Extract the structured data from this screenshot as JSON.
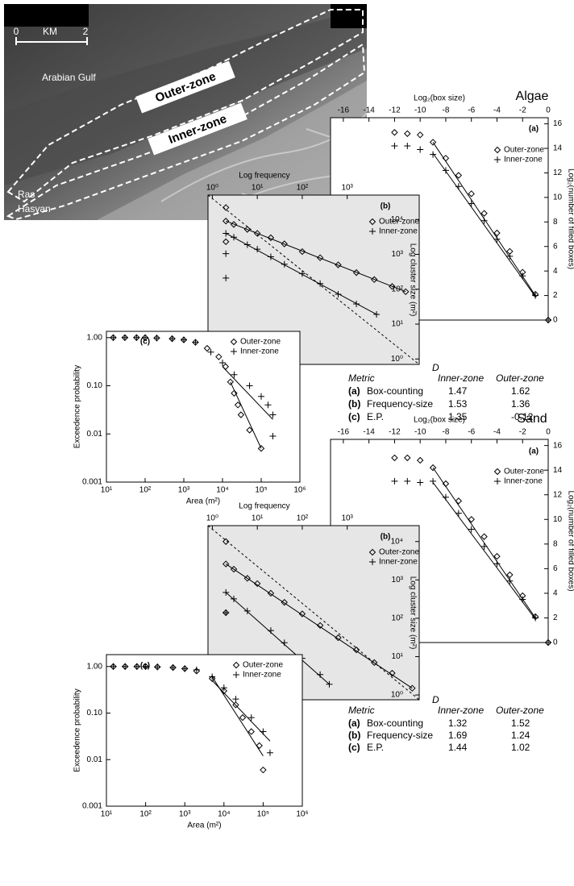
{
  "map": {
    "scale_bar": [
      "0",
      "KM",
      "2"
    ],
    "sea_label": "Arabian Gulf",
    "zone_labels": [
      "Outer-zone",
      "Inner-zone"
    ],
    "place_label": [
      "Ras",
      "Hasyan"
    ]
  },
  "chart_data": [
    {
      "type": "scatter",
      "title": "Algae",
      "panel_label": "(a)",
      "xlabel": "Log₂(box size)",
      "ylabel": "Log₂(number of filled boxes)",
      "xlim": [
        -17,
        0
      ],
      "ylim": [
        0,
        16.5
      ],
      "xticks": [
        -16,
        -14,
        -12,
        -10,
        -8,
        -6,
        -4,
        -2,
        0
      ],
      "yticks": [
        0,
        2,
        4,
        6,
        8,
        10,
        12,
        14,
        16
      ],
      "legend": "upper right",
      "series": [
        {
          "name": "Outer-zone",
          "marker": "diamond",
          "color": "#000000",
          "x": [
            -12,
            -11,
            -10,
            -9,
            -8,
            -7,
            -6,
            -5,
            -4,
            -3,
            -2,
            -1,
            0
          ],
          "values": [
            15.3,
            15.2,
            15.1,
            14.5,
            13.2,
            11.8,
            10.3,
            8.7,
            7.1,
            5.6,
            3.9,
            2.1,
            0
          ],
          "fit": {
            "x": [
              -9,
              -1
            ],
            "values": [
              14.5,
              2.0
            ]
          }
        },
        {
          "name": "Inner-zone",
          "marker": "plus",
          "color": "#000000",
          "x": [
            -12,
            -11,
            -10,
            -9,
            -8,
            -7,
            -6,
            -5,
            -4,
            -3,
            -2,
            -1,
            0
          ],
          "values": [
            14.2,
            14.2,
            13.9,
            13.5,
            12.2,
            10.9,
            9.5,
            8.1,
            6.6,
            5.2,
            3.6,
            2.0,
            0
          ],
          "fit": {
            "x": [
              -9,
              -1
            ],
            "values": [
              13.6,
              1.9
            ]
          }
        }
      ]
    },
    {
      "type": "scatter",
      "panel_label": "(b)",
      "xlabel": "Log frequency",
      "ylabel": "Log cluster size (m²)",
      "xscale": "log",
      "yscale": "log",
      "xlim": [
        0.8,
        40000
      ],
      "ylim": [
        0.7,
        50000
      ],
      "xticks": [
        {
          "value": 1,
          "label": "10⁰"
        },
        {
          "value": 10,
          "label": "10¹"
        },
        {
          "value": 100,
          "label": "10²"
        },
        {
          "value": 1000,
          "label": "10³"
        }
      ],
      "yticks": [
        {
          "value": 1,
          "label": "10⁰"
        },
        {
          "value": 10,
          "label": "10¹"
        },
        {
          "value": 100,
          "label": "10²"
        },
        {
          "value": 1000,
          "label": "10³"
        },
        {
          "value": 10000,
          "label": "10⁴"
        }
      ],
      "legend": "upper right",
      "series": [
        {
          "name": "Outer-zone",
          "marker": "diamond",
          "color": "#000000",
          "x": [
            2,
            2,
            2,
            3,
            6,
            10,
            20,
            40,
            100,
            250,
            630,
            1600,
            4000,
            10000,
            20000
          ],
          "values": [
            22000,
            9000,
            2300,
            7200,
            5200,
            4000,
            3000,
            2000,
            1200,
            800,
            500,
            300,
            190,
            120,
            85
          ],
          "fit": {
            "x": [
              2,
              20000
            ],
            "values": [
              9000,
              85
            ]
          }
        },
        {
          "name": "Inner-zone",
          "marker": "plus",
          "color": "#000000",
          "x": [
            2,
            2,
            2,
            3,
            6,
            10,
            20,
            40,
            100,
            250,
            630,
            1600,
            4500
          ],
          "values": [
            4000,
            1050,
            210,
            3100,
            1900,
            1400,
            850,
            520,
            280,
            145,
            72,
            38,
            19
          ],
          "fit": {
            "x": [
              2,
              4500
            ],
            "values": [
              4000,
              19
            ]
          }
        }
      ]
    },
    {
      "type": "scatter",
      "panel_label": "(c)",
      "xlabel": "Area (m²)",
      "ylabel": "Exceedence probability",
      "xscale": "log",
      "yscale": "log",
      "xlim": [
        10,
        1000000
      ],
      "ylim": [
        0.001,
        1.35
      ],
      "xticks": [
        {
          "value": 10,
          "label": "10¹"
        },
        {
          "value": 100,
          "label": "10²"
        },
        {
          "value": 1000,
          "label": "10³"
        },
        {
          "value": 10000,
          "label": "10⁴"
        },
        {
          "value": 100000,
          "label": "10⁵"
        },
        {
          "value": 1000000,
          "label": "10⁶"
        }
      ],
      "yticks": [
        {
          "value": 1,
          "label": "1.00"
        },
        {
          "value": 0.1,
          "label": "0.10"
        },
        0.01,
        0.001
      ],
      "legend": "upper right",
      "series": [
        {
          "name": "Outer-zone",
          "marker": "diamond",
          "color": "#000000",
          "x": [
            15,
            30,
            60,
            100,
            200,
            500,
            1000,
            2000,
            4000,
            8000,
            12000,
            16000,
            20000,
            25000,
            30000,
            50000,
            100000
          ],
          "values": [
            1,
            1,
            1,
            1,
            0.98,
            0.95,
            0.9,
            0.8,
            0.6,
            0.4,
            0.25,
            0.12,
            0.07,
            0.04,
            0.025,
            0.012,
            0.005
          ],
          "fit": {
            "x": [
              16000,
              100000
            ],
            "values": [
              0.12,
              0.005
            ]
          }
        },
        {
          "name": "Inner-zone",
          "marker": "plus",
          "color": "#000000",
          "x": [
            15,
            30,
            60,
            100,
            200,
            500,
            1000,
            2000,
            5000,
            10000,
            20000,
            50000,
            100000,
            150000,
            200000,
            200000
          ],
          "values": [
            1,
            1,
            1,
            1,
            0.98,
            0.95,
            0.9,
            0.8,
            0.5,
            0.3,
            0.17,
            0.1,
            0.06,
            0.04,
            0.025,
            0.009
          ],
          "fit": {
            "x": [
              10000,
              200000
            ],
            "values": [
              0.25,
              0.02
            ]
          }
        }
      ]
    },
    {
      "type": "scatter",
      "title": "Sand",
      "panel_label": "(a)",
      "xlabel": "Log₂(box size)",
      "ylabel": "Log₂(number of filled boxes)",
      "xlim": [
        -17,
        0
      ],
      "ylim": [
        0,
        16.5
      ],
      "xticks": [
        -16,
        -14,
        -12,
        -10,
        -8,
        -6,
        -4,
        -2,
        0
      ],
      "yticks": [
        0,
        2,
        4,
        6,
        8,
        10,
        12,
        14,
        16
      ],
      "legend": "upper right",
      "series": [
        {
          "name": "Outer-zone",
          "marker": "diamond",
          "color": "#000000",
          "x": [
            -12,
            -11,
            -10,
            -9,
            -8,
            -7,
            -6,
            -5,
            -4,
            -3,
            -2,
            -1,
            0
          ],
          "values": [
            15.0,
            15.0,
            14.8,
            14.2,
            12.9,
            11.5,
            10.0,
            8.6,
            7.0,
            5.5,
            3.8,
            2.1,
            0
          ],
          "fit": {
            "x": [
              -9,
              -1
            ],
            "values": [
              14.2,
              2.0
            ]
          }
        },
        {
          "name": "Inner-zone",
          "marker": "plus",
          "color": "#000000",
          "x": [
            -12,
            -11,
            -10,
            -9,
            -8,
            -7,
            -6,
            -5,
            -4,
            -3,
            -2,
            -1,
            0
          ],
          "values": [
            13.1,
            13.1,
            13.0,
            13.1,
            11.8,
            10.5,
            9.2,
            7.8,
            6.4,
            5.0,
            3.5,
            2.0,
            0
          ],
          "fit": {
            "x": [
              -9,
              -1
            ],
            "values": [
              13.0,
              1.9
            ]
          }
        }
      ]
    },
    {
      "type": "scatter",
      "panel_label": "(b)",
      "xlabel": "Log frequency",
      "ylabel": "Log cluster size (m²)",
      "xscale": "log",
      "yscale": "log",
      "xlim": [
        0.8,
        40000
      ],
      "ylim": [
        0.75,
        26000
      ],
      "xticks": [
        {
          "value": 1,
          "label": "10⁰"
        },
        {
          "value": 10,
          "label": "10¹"
        },
        {
          "value": 100,
          "label": "10²"
        },
        {
          "value": 1000,
          "label": "10³"
        }
      ],
      "yticks": [
        {
          "value": 1,
          "label": "10⁰"
        },
        {
          "value": 10,
          "label": "10¹"
        },
        {
          "value": 100,
          "label": "10²"
        },
        {
          "value": 1000,
          "label": "10³"
        },
        {
          "value": 10000,
          "label": "10⁴"
        }
      ],
      "legend": "upper right",
      "series": [
        {
          "name": "Outer-zone",
          "marker": "diamond",
          "color": "#000000",
          "x": [
            2,
            2,
            2,
            3,
            6,
            10,
            20,
            40,
            100,
            250,
            630,
            1600,
            4000,
            10000,
            28000
          ],
          "values": [
            10000,
            2600,
            140,
            1900,
            1100,
            800,
            450,
            260,
            130,
            65,
            31,
            15,
            7,
            3.7,
            1.5
          ],
          "fit": {
            "x": [
              2,
              28000
            ],
            "values": [
              2600,
              1.5
            ]
          }
        },
        {
          "name": "Inner-zone",
          "marker": "plus",
          "color": "#000000",
          "x": [
            2,
            2,
            3,
            6,
            20,
            40,
            100,
            250,
            400
          ],
          "values": [
            470,
            140,
            320,
            155,
            48,
            23,
            9,
            3.4,
            1.9
          ],
          "fit": {
            "x": [
              2,
              400
            ],
            "values": [
              470,
              1.9
            ]
          }
        }
      ]
    },
    {
      "type": "scatter",
      "panel_label": "(c)",
      "xlabel": "Area (m²)",
      "ylabel": "Exceedence probability",
      "xscale": "log",
      "yscale": "log",
      "xlim": [
        10,
        1000000
      ],
      "ylim": [
        0.001,
        1.8
      ],
      "xticks": [
        {
          "value": 10,
          "label": "10¹"
        },
        {
          "value": 100,
          "label": "10²"
        },
        {
          "value": 1000,
          "label": "10³"
        },
        {
          "value": 10000,
          "label": "10⁴"
        },
        {
          "value": 100000,
          "label": "10⁵"
        },
        {
          "value": 1000000,
          "label": "10⁶"
        }
      ],
      "yticks": [
        {
          "value": 1,
          "label": "1.00"
        },
        {
          "value": 0.1,
          "label": "0.10"
        },
        0.01,
        0.001
      ],
      "legend": "upper right",
      "series": [
        {
          "name": "Outer-zone",
          "marker": "diamond",
          "color": "#000000",
          "x": [
            15,
            30,
            60,
            100,
            200,
            500,
            1000,
            2000,
            5000,
            10000,
            20000,
            30000,
            50000,
            80000,
            100000
          ],
          "values": [
            1,
            1,
            1,
            1,
            0.98,
            0.95,
            0.9,
            0.8,
            0.55,
            0.3,
            0.15,
            0.08,
            0.04,
            0.02,
            0.006
          ],
          "fit": {
            "x": [
              5000,
              100000
            ],
            "values": [
              0.6,
              0.012
            ]
          }
        },
        {
          "name": "Inner-zone",
          "marker": "plus",
          "color": "#000000",
          "x": [
            15,
            30,
            60,
            100,
            200,
            500,
            1000,
            2000,
            5000,
            10000,
            20000,
            50000,
            100000,
            150000
          ],
          "values": [
            1,
            1,
            1,
            1,
            0.98,
            0.95,
            0.9,
            0.85,
            0.6,
            0.35,
            0.2,
            0.08,
            0.04,
            0.014
          ],
          "fit": {
            "x": [
              5000,
              150000
            ],
            "values": [
              0.5,
              0.025
            ]
          }
        }
      ]
    }
  ],
  "tables": [
    {
      "header": [
        "Metric",
        "Inner-zone",
        "Outer-zone"
      ],
      "group_header": "D",
      "rows": [
        {
          "label": "(a)",
          "name": "Box-counting",
          "inner": 1.47,
          "outer": 1.62
        },
        {
          "label": "(b)",
          "name": "Frequency-size",
          "inner": 1.53,
          "outer": 1.36
        },
        {
          "label": "(c)",
          "name": "E.P.",
          "inner": 1.35,
          "outer": -0.12
        }
      ]
    },
    {
      "header": [
        "Metric",
        "Inner-zone",
        "Outer-zone"
      ],
      "group_header": "D",
      "rows": [
        {
          "label": "(a)",
          "name": "Box-counting",
          "inner": 1.32,
          "outer": 1.52
        },
        {
          "label": "(b)",
          "name": "Frequency-size",
          "inner": 1.69,
          "outer": 1.24
        },
        {
          "label": "(c)",
          "name": "E.P.",
          "inner": 1.44,
          "outer": 1.02
        }
      ]
    }
  ]
}
